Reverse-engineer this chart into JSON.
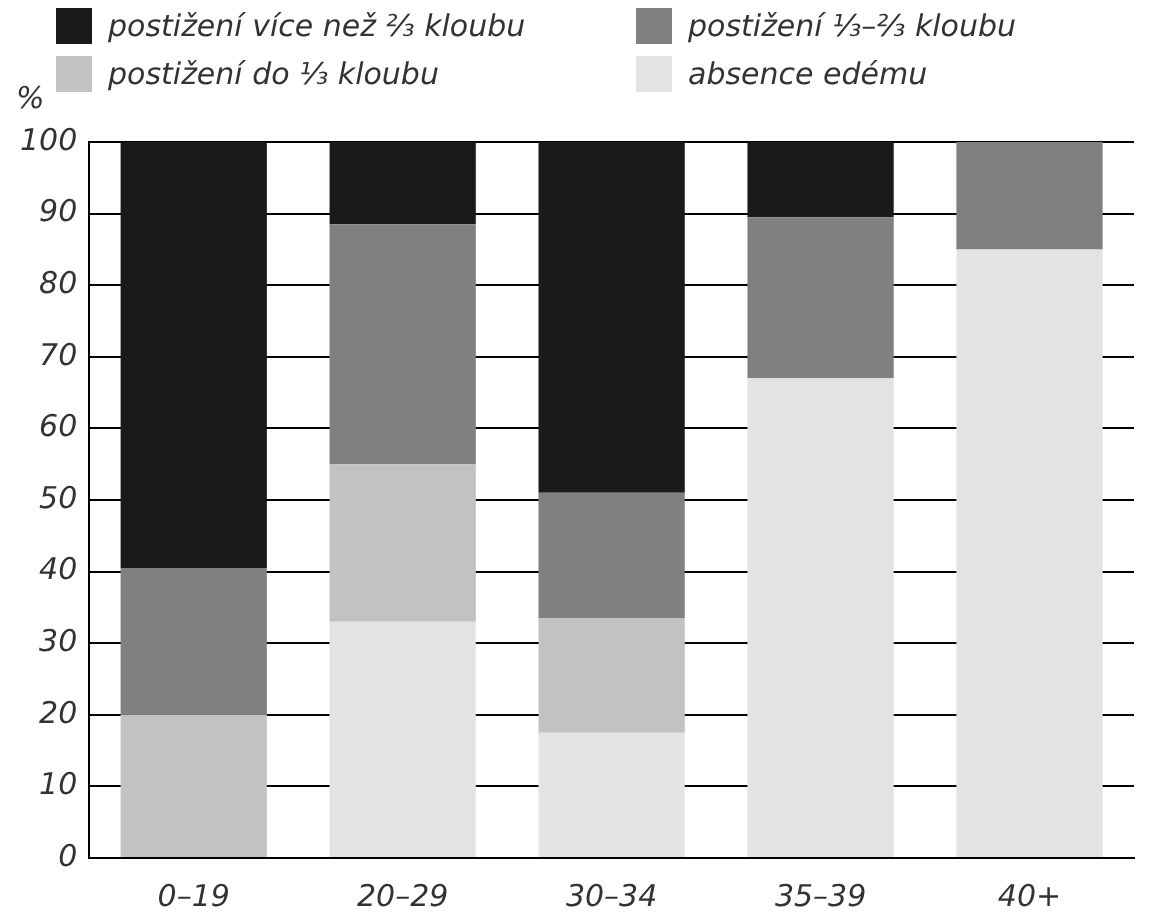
{
  "chart_data": {
    "type": "bar",
    "stacked": true,
    "ylabel": "%",
    "categories": [
      "0–19",
      "20–29",
      "30–34",
      "35–39",
      "40+"
    ],
    "series": [
      {
        "name": "absence edému",
        "color": "#e3e3e3",
        "values": [
          0,
          33,
          17.5,
          67,
          85
        ]
      },
      {
        "name": "postižení do ⅓ kloubu",
        "color": "#c2c2c2",
        "values": [
          20,
          22,
          16,
          0,
          0
        ]
      },
      {
        "name": "postižení ⅓–⅔ kloubu",
        "color": "#808080",
        "values": [
          20.5,
          33.5,
          17.5,
          22.5,
          15
        ]
      },
      {
        "name": "postižení více než ⅔ kloubu",
        "color": "#1a1a1a",
        "values": [
          59.5,
          11.5,
          49,
          10.5,
          0
        ]
      }
    ],
    "ylim": [
      0,
      100
    ],
    "yticks": [
      0,
      10,
      20,
      30,
      40,
      50,
      60,
      70,
      80,
      90,
      100
    ],
    "grid": "y",
    "legend": "top left"
  }
}
